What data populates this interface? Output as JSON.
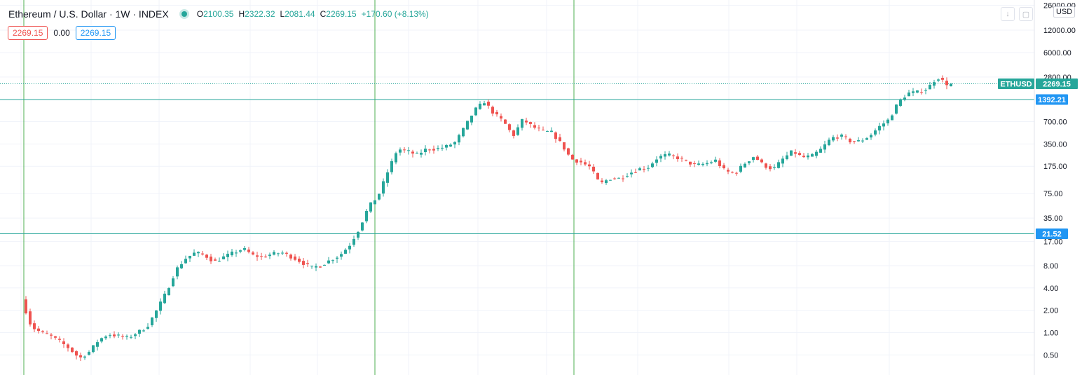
{
  "header": {
    "symbol": "Ethereum / U.S. Dollar · 1W · INDEX",
    "o_label": "O",
    "o_value": "2100.35",
    "h_label": "H",
    "h_value": "2322.32",
    "l_label": "L",
    "l_value": "2081.44",
    "c_label": "C",
    "c_value": "2269.15",
    "change": "+170.60 (+8.13%)"
  },
  "indicator_row": {
    "value1": "2269.15",
    "value2": "0.00",
    "value3": "2269.15"
  },
  "axis": {
    "currency": "USD",
    "last_symbol": "ETHUSD",
    "last_price": "2269.15"
  },
  "colors": {
    "up": "#26a69a",
    "down": "#ef5350",
    "hline": "#26a69a",
    "vline": "#4caf50"
  },
  "chart_data": {
    "type": "candlestick",
    "y_scale": "log",
    "y_ticks": [
      "26000.00",
      "12000.00",
      "6000.00",
      "2800.00",
      "1392.21",
      "700.00",
      "350.00",
      "175.00",
      "75.00",
      "35.00",
      "21.52",
      "17.00",
      "8.00",
      "4.00",
      "2.00",
      "1.00",
      "0.50"
    ],
    "horizontal_lines": [
      {
        "value": 1392.21,
        "label": "1392.21"
      },
      {
        "value": 21.52,
        "label": "21.52"
      }
    ],
    "last_price": 2269.15,
    "ohlc_latest": {
      "open": 2100.35,
      "high": 2322.32,
      "low": 2081.44,
      "close": 2269.15
    },
    "price_path": [
      [
        0,
        2.8
      ],
      [
        1,
        1.2
      ],
      [
        2,
        1.0
      ],
      [
        3,
        0.9
      ],
      [
        4,
        0.75
      ],
      [
        5,
        0.6
      ],
      [
        6,
        0.45
      ],
      [
        7,
        0.55
      ],
      [
        8,
        0.8
      ],
      [
        9,
        0.95
      ],
      [
        10,
        0.9
      ],
      [
        11,
        0.85
      ],
      [
        12,
        1.0
      ],
      [
        13,
        1.2
      ],
      [
        14,
        2.0
      ],
      [
        15,
        3.5
      ],
      [
        16,
        7
      ],
      [
        17,
        10
      ],
      [
        18,
        12
      ],
      [
        19,
        11
      ],
      [
        20,
        9
      ],
      [
        21,
        10.5
      ],
      [
        22,
        12
      ],
      [
        23,
        13.5
      ],
      [
        24,
        11
      ],
      [
        25,
        10.5
      ],
      [
        26,
        11.5
      ],
      [
        27,
        12
      ],
      [
        28,
        10.5
      ],
      [
        29,
        9
      ],
      [
        30,
        7.5
      ],
      [
        31,
        8
      ],
      [
        32,
        9.5
      ],
      [
        33,
        11
      ],
      [
        34,
        15
      ],
      [
        35,
        25
      ],
      [
        36,
        50
      ],
      [
        37,
        70
      ],
      [
        38,
        150
      ],
      [
        39,
        300
      ],
      [
        40,
        280
      ],
      [
        41,
        250
      ],
      [
        42,
        300
      ],
      [
        43,
        300
      ],
      [
        44,
        320
      ],
      [
        45,
        370
      ],
      [
        46,
        600
      ],
      [
        47,
        1000
      ],
      [
        48,
        1300
      ],
      [
        49,
        900
      ],
      [
        50,
        700
      ],
      [
        51,
        450
      ],
      [
        52,
        750
      ],
      [
        53,
        600
      ],
      [
        54,
        520
      ],
      [
        55,
        500
      ],
      [
        56,
        350
      ],
      [
        57,
        220
      ],
      [
        58,
        200
      ],
      [
        59,
        170
      ],
      [
        60,
        100
      ],
      [
        61,
        120
      ],
      [
        62,
        120
      ],
      [
        63,
        140
      ],
      [
        64,
        160
      ],
      [
        65,
        170
      ],
      [
        66,
        230
      ],
      [
        67,
        250
      ],
      [
        68,
        230
      ],
      [
        69,
        200
      ],
      [
        70,
        180
      ],
      [
        71,
        190
      ],
      [
        72,
        210
      ],
      [
        73,
        150
      ],
      [
        74,
        140
      ],
      [
        75,
        190
      ],
      [
        76,
        240
      ],
      [
        77,
        180
      ],
      [
        78,
        160
      ],
      [
        79,
        220
      ],
      [
        80,
        280
      ],
      [
        81,
        230
      ],
      [
        82,
        240
      ],
      [
        83,
        300
      ],
      [
        84,
        420
      ],
      [
        85,
        450
      ],
      [
        86,
        380
      ],
      [
        87,
        380
      ],
      [
        88,
        450
      ],
      [
        89,
        600
      ],
      [
        90,
        750
      ],
      [
        91,
        1300
      ],
      [
        92,
        1700
      ],
      [
        93,
        1750
      ],
      [
        94,
        1950
      ],
      [
        95,
        2800
      ],
      [
        96,
        2269.15
      ]
    ]
  }
}
